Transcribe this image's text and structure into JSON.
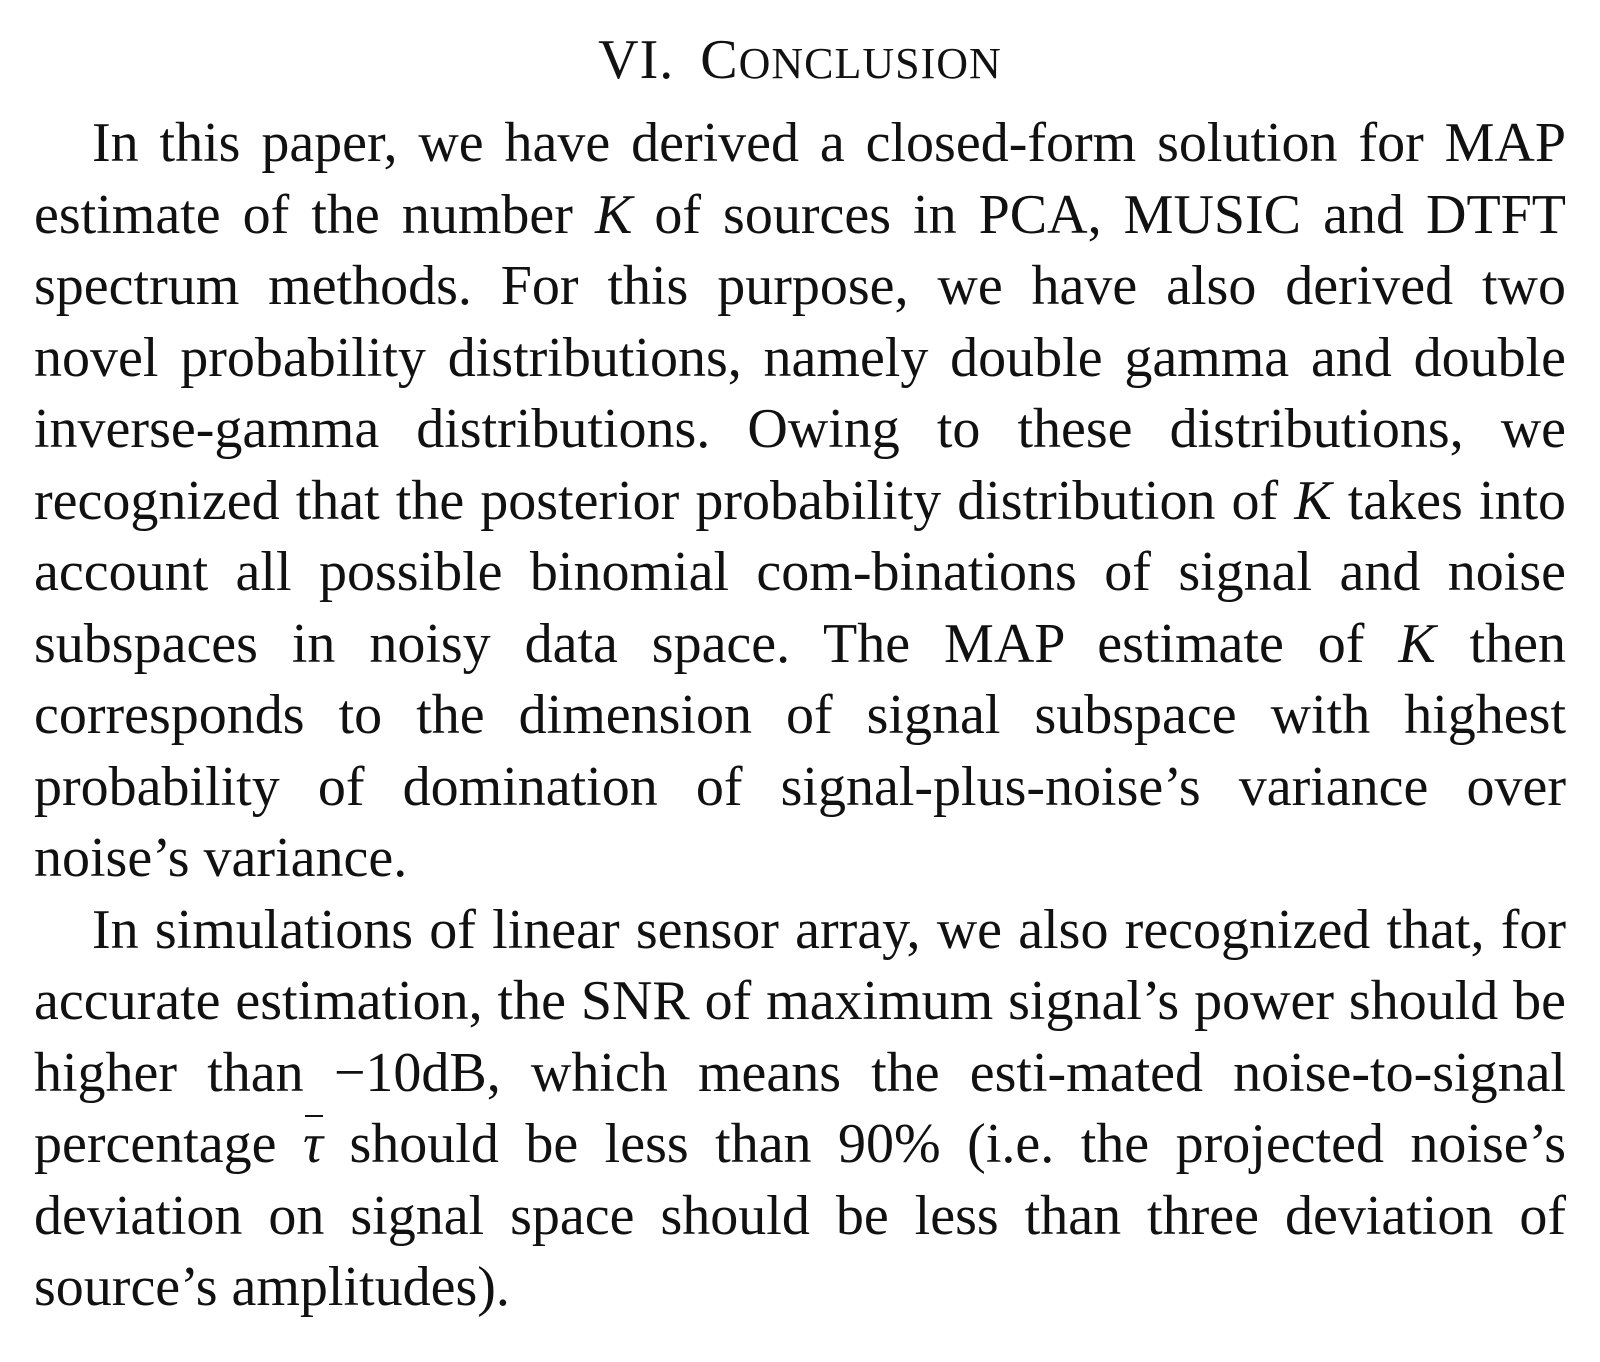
{
  "section": {
    "number": "VI.",
    "title_first": "C",
    "title_rest": "ONCLUSION"
  },
  "paragraph1": {
    "t1": "In this paper, we have derived a closed-form solution for MAP estimate of the number ",
    "k1": "K",
    "t2": " of sources in PCA, MUSIC and DTFT spectrum methods. For this purpose, we have also derived two novel probability distributions, namely double gamma and double inverse-gamma distributions. Owing to these distributions, we recognized that the posterior probability distribution of ",
    "k2": "K",
    "t3": " takes into account all possible binomial com-",
    "t4": "binations of signal and noise subspaces in noisy data space. The MAP estimate of ",
    "k3": "K",
    "t5": " then corresponds to the dimension of signal subspace with highest probability of domination of signal-plus-noise’s variance over noise’s variance."
  },
  "paragraph2": {
    "t1": "In simulations of linear sensor array, we also recognized that, for accurate estimation, the SNR of maximum signal’s power should be higher than ",
    "value_db": "−10dB",
    "t2": ", which means the esti-",
    "t3": "mated noise-to-signal percentage ",
    "tau": "τ",
    "t4": " should be less than ",
    "percent": "90%",
    "t5": " (i.e. the projected noise’s deviation on signal space should be less than three deviation of source’s amplitudes)."
  }
}
